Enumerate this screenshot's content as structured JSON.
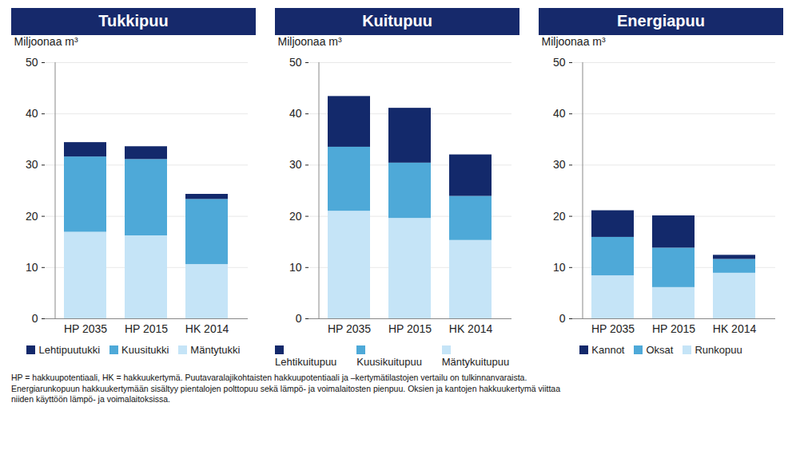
{
  "chart_data": [
    {
      "type": "bar",
      "title": "Tukkipuu",
      "y_label": "Miljoonaa m³",
      "stacked": true,
      "grid": true,
      "legend": "bottom",
      "categories": [
        "HP 2035",
        "HP 2015",
        "HK 2014"
      ],
      "series": [
        {
          "name": "Mäntytukki",
          "color": "#c5e4f7",
          "values": [
            16.9,
            16.2,
            10.6
          ]
        },
        {
          "name": "Kuusitukki",
          "color": "#4ea9d8",
          "values": [
            14.7,
            14.9,
            12.7
          ]
        },
        {
          "name": "Lehtipuutukki",
          "color": "#13296b",
          "values": [
            2.8,
            2.5,
            1.0
          ]
        }
      ],
      "ylim": [
        0,
        50
      ],
      "yticks": [
        0,
        10,
        20,
        30,
        40,
        50
      ]
    },
    {
      "type": "bar",
      "title": "Kuitupuu",
      "y_label": "Miljoonaa m³",
      "stacked": true,
      "grid": true,
      "legend": "bottom",
      "categories": [
        "HP 2035",
        "HP 2015",
        "HK 2014"
      ],
      "series": [
        {
          "name": "Mäntykuitupuu",
          "color": "#c5e4f7",
          "values": [
            21.0,
            19.6,
            15.3
          ]
        },
        {
          "name": "Kuusikuitupuu",
          "color": "#4ea9d8",
          "values": [
            12.5,
            10.8,
            8.6
          ]
        },
        {
          "name": "Lehtikuitupuu",
          "color": "#13296b",
          "values": [
            9.9,
            10.7,
            8.1
          ]
        }
      ],
      "ylim": [
        0,
        50
      ],
      "yticks": [
        0,
        10,
        20,
        30,
        40,
        50
      ]
    },
    {
      "type": "bar",
      "title": "Energiapuu",
      "y_label": "Miljoonaa m³",
      "stacked": true,
      "grid": true,
      "legend": "bottom",
      "categories": [
        "HP 2035",
        "HP 2015",
        "HK 2014"
      ],
      "series": [
        {
          "name": "Runkopuu",
          "color": "#c5e4f7",
          "values": [
            8.4,
            6.1,
            8.9
          ]
        },
        {
          "name": "Oksat",
          "color": "#4ea9d8",
          "values": [
            7.5,
            7.7,
            2.7
          ]
        },
        {
          "name": "Kannot",
          "color": "#13296b",
          "values": [
            5.2,
            6.3,
            0.8
          ]
        }
      ],
      "ylim": [
        0,
        50
      ],
      "yticks": [
        0,
        10,
        20,
        30,
        40,
        50
      ]
    }
  ],
  "footnote": [
    "HP = hakkuupotentiaali, HK = hakkuukertymä. Puutavaralajikohtaisten hakkuupotentiaali ja –kertymätilastojen vertailu on tulkinnanvaraista.",
    "Energiarunkopuun hakkuukertymään sisältyy pientalojen polttopuu sekä lämpö- ja voimalaitosten pienpuu. Oksien ja kantojen hakkuukertymä viittaa",
    "niiden käyttöön lämpö- ja voimalaitoksissa."
  ]
}
